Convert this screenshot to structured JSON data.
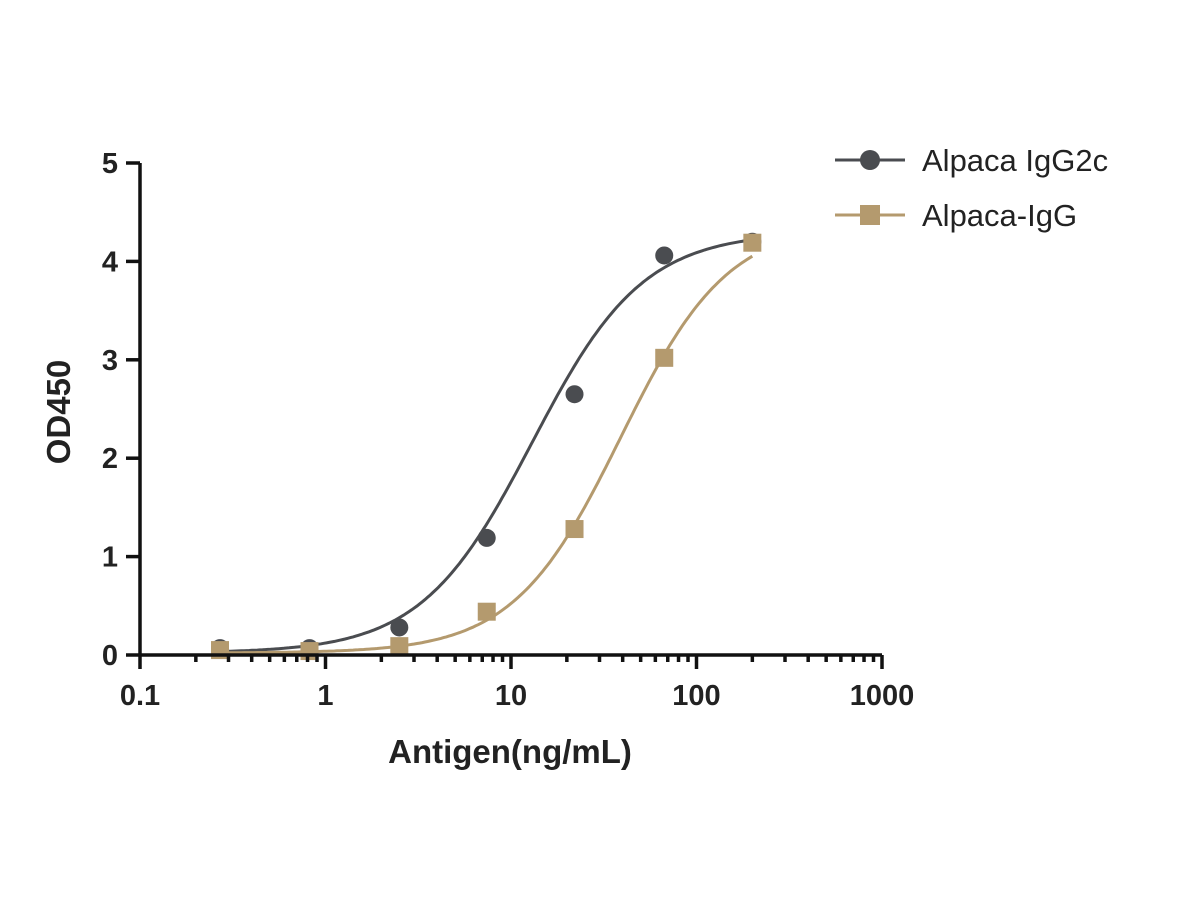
{
  "chart_data": {
    "type": "scatter",
    "xlabel": "Antigen(ng/mL)",
    "ylabel": "OD450",
    "xscale": "log",
    "xlim": [
      0.1,
      1000
    ],
    "ylim": [
      0,
      5
    ],
    "xticks": [
      0.1,
      1,
      10,
      100,
      1000
    ],
    "xtick_labels": [
      "0.1",
      "1",
      "10",
      "100",
      "1000"
    ],
    "yticks": [
      0,
      1,
      2,
      3,
      4,
      5
    ],
    "ytick_labels": [
      "0",
      "1",
      "2",
      "3",
      "4",
      "5"
    ],
    "legend_position": "top-right",
    "grid": false,
    "fit": "sigmoidal",
    "series": [
      {
        "name": "Alpaca IgG2c",
        "color": "#4a4c50",
        "marker": "circle",
        "x": [
          0.27,
          0.82,
          2.5,
          7.4,
          22,
          67,
          200
        ],
        "y": [
          0.07,
          0.07,
          0.28,
          1.19,
          2.65,
          4.06,
          4.2
        ],
        "fit_params": {
          "bottom": 0.02,
          "top": 4.3,
          "ec50": 13.0,
          "hill": 1.45
        }
      },
      {
        "name": "Alpaca-IgG",
        "color": "#b49a6e",
        "marker": "square",
        "x": [
          0.27,
          0.82,
          2.5,
          7.4,
          22,
          67,
          200
        ],
        "y": [
          0.05,
          0.04,
          0.09,
          0.44,
          1.28,
          3.02,
          4.19
        ],
        "fit_params": {
          "bottom": 0.02,
          "top": 4.4,
          "ec50": 39.0,
          "hill": 1.5
        }
      }
    ]
  }
}
